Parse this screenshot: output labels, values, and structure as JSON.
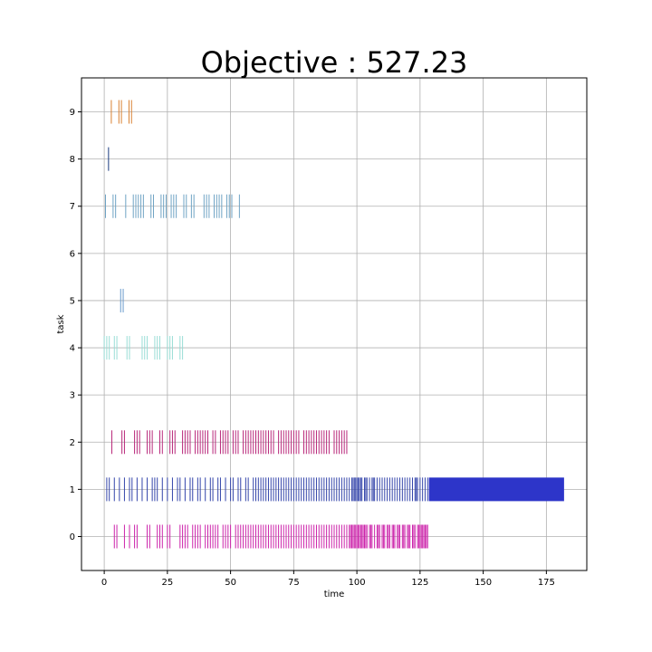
{
  "chart_data": {
    "type": "event-raster",
    "title": "Objective : 527.23",
    "xlabel": "time",
    "ylabel": "task",
    "xlim": [
      -9,
      191
    ],
    "ylim": [
      -0.72,
      9.72
    ],
    "xticks": [
      0,
      25,
      50,
      75,
      100,
      125,
      150,
      175
    ],
    "yticks": [
      0,
      1,
      2,
      3,
      4,
      5,
      6,
      7,
      8,
      9
    ],
    "grid": true,
    "legend": "none",
    "tasks": [
      {
        "task": 0,
        "color": "#cc22aa",
        "events": [
          4,
          5,
          8,
          10,
          12,
          13,
          17,
          18,
          21,
          22,
          23,
          25,
          26,
          30,
          31,
          32,
          33,
          35,
          36,
          37,
          38,
          40,
          41,
          42,
          43,
          44,
          45,
          47,
          48,
          49,
          50,
          52,
          53,
          54,
          55,
          56,
          57,
          58,
          59,
          60,
          61,
          62,
          63,
          64,
          65,
          66,
          67,
          68,
          69,
          70,
          71,
          72,
          73,
          74,
          75,
          76,
          77,
          78,
          79,
          80,
          81,
          82,
          83,
          84,
          85,
          86,
          87,
          88,
          89,
          90,
          91,
          92,
          93,
          94,
          95,
          96,
          97,
          97.5,
          98,
          98.5,
          99,
          99.5,
          100,
          100.5,
          101,
          101.5,
          102,
          102.5,
          103,
          103.5,
          104,
          105,
          105.5,
          106,
          107,
          108,
          108.5,
          109,
          110,
          110.5,
          111,
          112,
          112.5,
          113,
          114,
          114.5,
          115,
          116,
          116.5,
          117,
          118,
          118.5,
          119,
          120,
          120.5,
          121,
          122,
          122.5,
          123,
          124,
          124.5,
          125,
          125.5,
          126,
          126.5,
          127,
          127.5,
          128
        ]
      },
      {
        "task": 1,
        "color": "#3344aa",
        "events": [
          1,
          2,
          4,
          6,
          8,
          10,
          11,
          13,
          15,
          17,
          19,
          20,
          21,
          23,
          25,
          27,
          29,
          30,
          32,
          34,
          35,
          37,
          38,
          40,
          42,
          43,
          45,
          46,
          48,
          50,
          51,
          53,
          54,
          56,
          57,
          59,
          60,
          61,
          62,
          63,
          64,
          65,
          66,
          67,
          68,
          69,
          70,
          71,
          72,
          73,
          74,
          75,
          76,
          77,
          78,
          79,
          80,
          81,
          82,
          83,
          84,
          85,
          86,
          87,
          88,
          89,
          90,
          91,
          92,
          93,
          94,
          95,
          96,
          97,
          98,
          98.5,
          99,
          99.5,
          100,
          100.5,
          101,
          101.5,
          102,
          103,
          103.5,
          104,
          105,
          106,
          106.5,
          107,
          108,
          109,
          110,
          111,
          112,
          113,
          114,
          115,
          116,
          117,
          118,
          119,
          120,
          121,
          122,
          123,
          123.5,
          124,
          125,
          126,
          127,
          128
        ],
        "block": [
          128.5,
          182
        ],
        "block_color": "#2d35c9"
      },
      {
        "task": 2,
        "color": "#b8277a",
        "events": [
          3,
          7,
          8,
          12,
          13,
          14,
          17,
          18,
          19,
          22,
          23,
          26,
          27,
          28,
          31,
          32,
          33,
          34,
          36,
          37,
          38,
          39,
          40,
          41,
          43,
          44,
          46,
          47,
          48,
          49,
          51,
          52,
          53,
          55,
          56,
          57,
          58,
          59,
          60,
          61,
          62,
          63,
          64,
          65,
          66,
          67,
          69,
          70,
          71,
          72,
          73,
          74,
          75,
          76,
          77,
          79,
          80,
          81,
          82,
          83,
          84,
          85,
          86,
          87,
          88,
          89,
          91,
          92,
          93,
          94,
          95,
          96
        ]
      },
      {
        "task": 4,
        "color": "#99ddd6",
        "events": [
          0,
          1,
          2,
          4,
          5,
          9,
          10,
          15,
          16,
          17,
          20,
          21,
          22,
          25,
          26,
          27,
          30,
          31
        ]
      },
      {
        "task": 5,
        "color": "#6699cc",
        "events": [
          6.5,
          7.5
        ]
      },
      {
        "task": 7,
        "color": "#6fa3c4",
        "events": [
          0.5,
          3.5,
          4.5,
          8.5,
          11.5,
          12.5,
          13.5,
          14.5,
          15.5,
          18.5,
          19.5,
          22.5,
          23.5,
          24.5,
          26.5,
          27.5,
          28.5,
          31.5,
          32.5,
          34.5,
          35.5,
          39.5,
          40.5,
          41.5,
          43.5,
          44.5,
          45.5,
          46.5,
          48.5,
          49.5,
          50.5,
          53.5
        ]
      },
      {
        "task": 8,
        "color": "#1a3a80",
        "events": [
          1.7
        ]
      },
      {
        "task": 9,
        "color": "#d98030",
        "events": [
          2.8,
          5.8,
          6.8,
          9.8,
          10.8
        ]
      }
    ]
  }
}
